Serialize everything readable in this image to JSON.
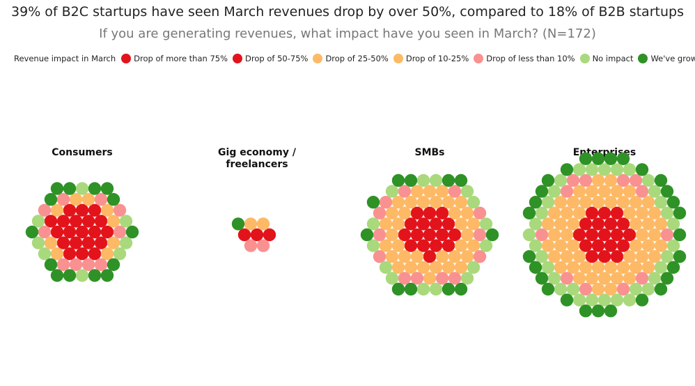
{
  "title": "39% of  B2C startups have seen  March revenues drop by over 50%, compared to 18% of  B2B startups",
  "subtitle": "If you are generating revenues, what impact have you seen in  March? (N=172)",
  "legend": {
    "title": "Revenue impact in  March",
    "items": [
      {
        "label": "Drop of more than 75%",
        "color": "#e3131b"
      },
      {
        "label": "Drop of 50-75%",
        "color": "#e3131b"
      },
      {
        "label": "Drop of 25-50%",
        "color": "#fdb966"
      },
      {
        "label": "Drop of 10-25%",
        "color": "#fdb966"
      },
      {
        "label": "Drop of less than 10%",
        "color": "#f99191"
      },
      {
        "label": "No impact",
        "color": "#a9d97c"
      },
      {
        "label": "We've grown",
        "color": "#2f9226"
      }
    ]
  },
  "chart_data": {
    "type": "hex-cluster",
    "series_colors": {
      "drop_75": "#e3131b",
      "drop_50_75": "#e3131b",
      "drop_25_50": "#fdb966",
      "drop_10_25": "#fdb966",
      "drop_lt_10": "#f99191",
      "no_impact": "#a9d97c",
      "grown": "#2f9226"
    },
    "panels": [
      {
        "label": "Consumers",
        "counts": {
          "severe_drop": 20,
          "moderate_drop": 9,
          "small_drop": 10,
          "no_impact": 8,
          "grown": 14
        }
      },
      {
        "label": "Gig economy /\nfreelancers",
        "counts": {
          "severe_drop": 3,
          "moderate_drop": 2,
          "small_drop": 2,
          "no_impact": 0,
          "grown": 1
        }
      },
      {
        "label": "SMBs",
        "counts": {
          "severe_drop": 17,
          "moderate_drop": 36,
          "small_drop": 13,
          "no_impact": 15,
          "grown": 11
        }
      },
      {
        "label": "Enterprises",
        "counts": {
          "severe_drop": 19,
          "moderate_drop": 58,
          "small_drop": 12,
          "no_impact": 33,
          "grown": 28
        }
      }
    ]
  }
}
